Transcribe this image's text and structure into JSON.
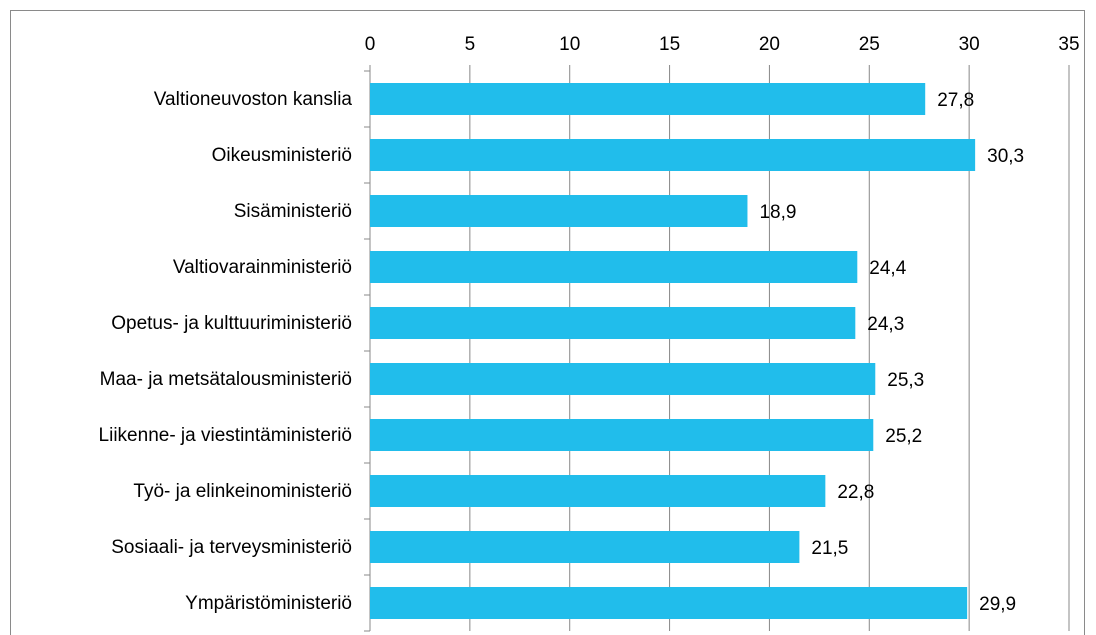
{
  "chart_data": {
    "type": "barh",
    "categories": [
      "Valtioneuvoston kanslia",
      "Oikeusministeriö",
      "Sisäministeriö",
      "Valtiovarainministeriö",
      "Opetus- ja kulttuuriministeriö",
      "Maa- ja metsätalousministeriö",
      "Liikenne- ja viestintäministeriö",
      "Työ- ja elinkeinoministeriö",
      "Sosiaali- ja terveysministeriö",
      "Ympäristöministeriö"
    ],
    "values": [
      27.8,
      30.3,
      18.9,
      24.4,
      24.3,
      25.3,
      25.2,
      22.8,
      21.5,
      29.9
    ],
    "value_labels": [
      "27,8",
      "30,3",
      "18,9",
      "24,4",
      "24,3",
      "25,3",
      "25,2",
      "22,8",
      "21,5",
      "29,9"
    ],
    "color": "#21bdeb",
    "xlim": [
      0,
      35
    ],
    "xticks": [
      0,
      5,
      10,
      15,
      20,
      25,
      30,
      35
    ],
    "grid": true
  }
}
